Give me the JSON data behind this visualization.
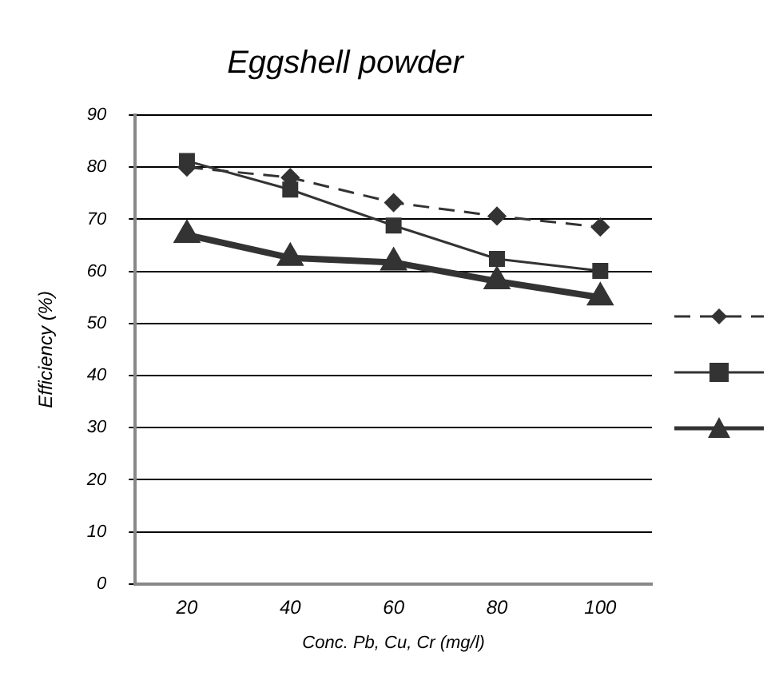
{
  "chart_data": {
    "type": "line",
    "title": "Eggshell powder",
    "xlabel": "Conc. Pb, Cu, Cr (mg/l)",
    "ylabel": "Efficiency (%)",
    "categories": [
      "20",
      "40",
      "60",
      "80",
      "100"
    ],
    "series": [
      {
        "color": "#333333",
        "values": [
          80,
          78,
          73.2,
          70.6,
          68.5
        ],
        "marker": "diamond",
        "line_style": "dashed"
      },
      {
        "color": "#333333",
        "values": [
          81.2,
          75.7,
          68.8,
          62.4,
          60.1
        ],
        "marker": "square",
        "line_style": "solid"
      },
      {
        "color": "#333333",
        "values": [
          67,
          62.6,
          61.7,
          58.1,
          55
        ],
        "marker": "triangle",
        "line_style": "solid"
      }
    ],
    "ylim": [
      0,
      90
    ],
    "yticks": [
      0,
      10,
      20,
      30,
      40,
      50,
      60,
      70,
      80,
      90
    ],
    "grid": "y"
  }
}
